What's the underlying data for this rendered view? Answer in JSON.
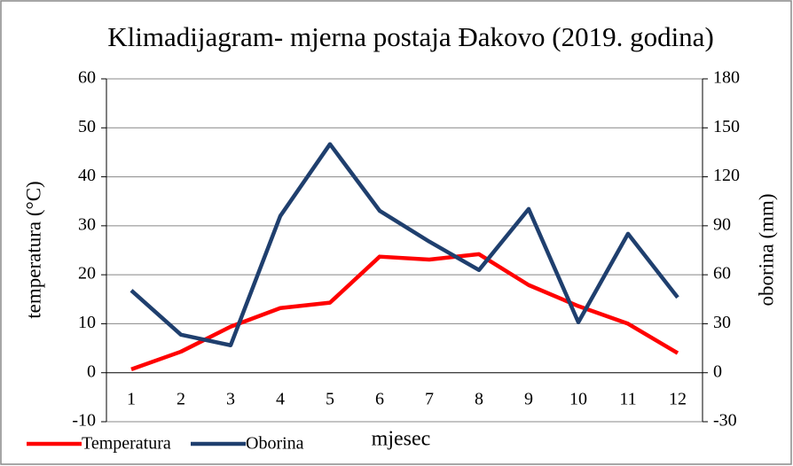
{
  "chart_data": {
    "type": "line",
    "title": "Klimadijagram- mjerna postaja Đakovo (2019. godina)",
    "xlabel": "mjesec",
    "ylabel": "temperatura (°C)",
    "y2label": "oborina (mm)",
    "categories": [
      "1",
      "2",
      "3",
      "4",
      "5",
      "6",
      "7",
      "8",
      "9",
      "10",
      "11",
      "12"
    ],
    "series": [
      {
        "name": "Temperatura",
        "color": "#ff0000",
        "values": [
          0.7,
          4.3,
          9.4,
          13.2,
          14.3,
          23.7,
          23.1,
          24.2,
          17.9,
          13.6,
          10.0,
          4.0
        ]
      },
      {
        "name": "Oborina",
        "color": "#1f3f6e",
        "axis": "y2",
        "values": [
          50.4,
          23.3,
          16.8,
          96,
          140,
          99.2,
          80.3,
          62.9,
          100.3,
          30.9,
          85.1,
          46.1
        ]
      }
    ],
    "ylim": [
      -10,
      60
    ],
    "yticks": [
      -10,
      0,
      10,
      20,
      30,
      40,
      50,
      60
    ],
    "y2lim": [
      -30,
      180
    ],
    "y2ticks": [
      -30,
      0,
      30,
      60,
      90,
      120,
      150,
      180
    ],
    "grid": true,
    "legend": "bottom"
  }
}
